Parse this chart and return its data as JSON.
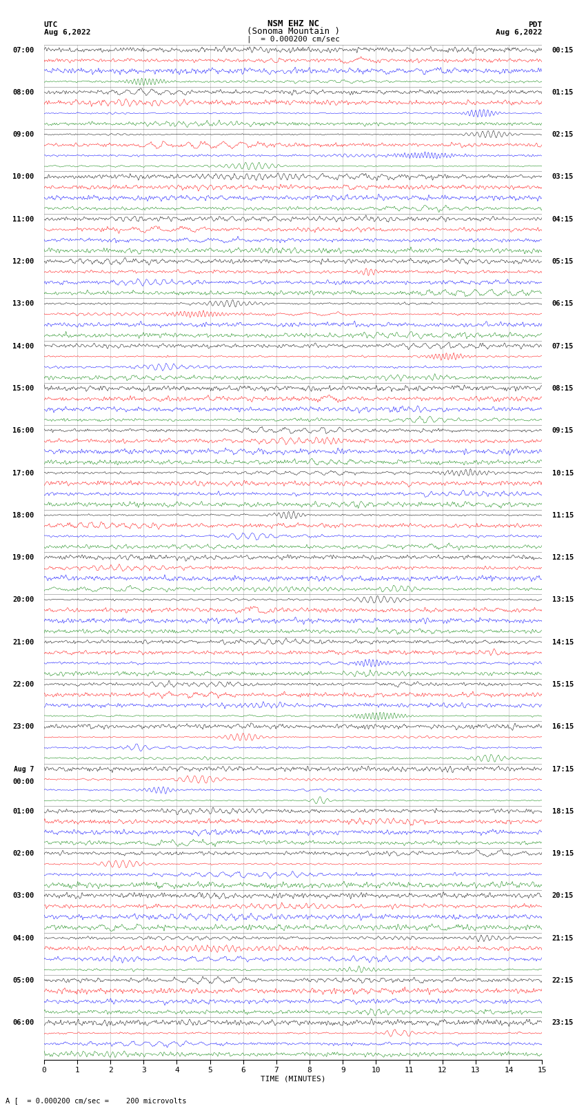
{
  "title_line1": "NSM EHZ NC",
  "title_line2": "(Sonoma Mountain )",
  "scale_label": "= 0.000200 cm/sec",
  "utc_label": "UTC",
  "utc_date": "Aug 6,2022",
  "pdt_label": "PDT",
  "pdt_date": "Aug 6,2022",
  "xlabel": "TIME (MINUTES)",
  "footer_text": "A [  = 0.000200 cm/sec =    200 microvolts",
  "colors": [
    "black",
    "red",
    "blue",
    "green"
  ],
  "num_groups": 24,
  "traces_per_group": 4,
  "minutes": 15,
  "bg_color": "white",
  "left_times_utc": [
    "07:00",
    "08:00",
    "09:00",
    "10:00",
    "11:00",
    "12:00",
    "13:00",
    "14:00",
    "15:00",
    "16:00",
    "17:00",
    "18:00",
    "19:00",
    "20:00",
    "21:00",
    "22:00",
    "23:00",
    "Aug 7\n00:00",
    "01:00",
    "02:00",
    "03:00",
    "04:00",
    "05:00",
    "06:00"
  ],
  "right_times_pdt": [
    "00:15",
    "01:15",
    "02:15",
    "03:15",
    "04:15",
    "05:15",
    "06:15",
    "07:15",
    "08:15",
    "09:15",
    "10:15",
    "11:15",
    "12:15",
    "13:15",
    "14:15",
    "15:15",
    "16:15",
    "17:15",
    "18:15",
    "19:15",
    "20:15",
    "21:15",
    "22:15",
    "23:15"
  ]
}
